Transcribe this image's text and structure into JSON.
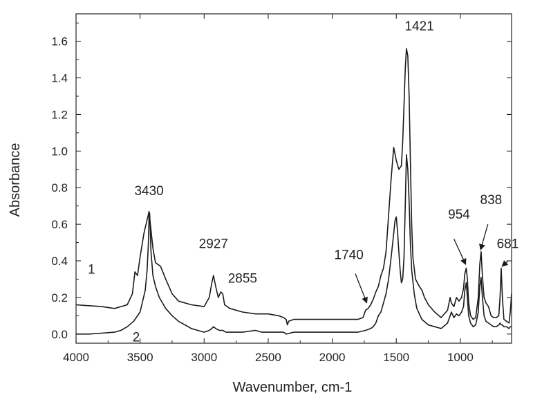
{
  "chart_data": {
    "type": "line",
    "xlabel": "Wavenumber, cm-1",
    "ylabel": "Absorbance",
    "xlim": [
      4000,
      600
    ],
    "ylim": [
      -0.05,
      1.75
    ],
    "x_reversed": true,
    "grid": false,
    "legend": "none",
    "x_ticks": [
      4000,
      3500,
      3000,
      2500,
      2000,
      1500,
      1000
    ],
    "y_ticks": [
      0.0,
      0.2,
      0.4,
      0.6,
      0.8,
      1.0,
      1.2,
      1.4,
      1.6
    ],
    "x_tick_labels": [
      "4000",
      "3500",
      "3000",
      "2500",
      "2000",
      "1500",
      "1000"
    ],
    "y_tick_labels": [
      "0.0",
      "0.2",
      "0.4",
      "0.6",
      "0.8",
      "1.0",
      "1.2",
      "1.4",
      "1.6"
    ],
    "line_color": "#1a1a1a",
    "series": [
      {
        "label": "1",
        "x": [
          4000,
          3800,
          3700,
          3600,
          3560,
          3540,
          3520,
          3500,
          3470,
          3450,
          3440,
          3430,
          3420,
          3400,
          3380,
          3360,
          3340,
          3300,
          3250,
          3200,
          3100,
          3000,
          2960,
          2940,
          2927,
          2910,
          2890,
          2870,
          2855,
          2840,
          2800,
          2700,
          2600,
          2500,
          2420,
          2380,
          2360,
          2350,
          2340,
          2300,
          2200,
          2100,
          2000,
          1900,
          1800,
          1760,
          1740,
          1720,
          1700,
          1680,
          1660,
          1640,
          1620,
          1600,
          1580,
          1560,
          1540,
          1520,
          1500,
          1480,
          1460,
          1450,
          1440,
          1430,
          1421,
          1410,
          1400,
          1390,
          1380,
          1370,
          1350,
          1320,
          1300,
          1280,
          1250,
          1200,
          1150,
          1100,
          1080,
          1070,
          1050,
          1030,
          1010,
          990,
          975,
          965,
          954,
          945,
          935,
          920,
          900,
          880,
          860,
          848,
          838,
          828,
          815,
          800,
          780,
          760,
          740,
          720,
          700,
          690,
          681,
          672,
          660,
          640,
          620,
          610,
          600
        ],
        "y": [
          0.16,
          0.15,
          0.14,
          0.16,
          0.22,
          0.34,
          0.32,
          0.42,
          0.55,
          0.61,
          0.64,
          0.67,
          0.6,
          0.47,
          0.39,
          0.38,
          0.37,
          0.3,
          0.22,
          0.18,
          0.16,
          0.15,
          0.2,
          0.28,
          0.32,
          0.26,
          0.2,
          0.23,
          0.22,
          0.16,
          0.14,
          0.12,
          0.11,
          0.11,
          0.1,
          0.09,
          0.08,
          0.05,
          0.07,
          0.08,
          0.08,
          0.08,
          0.08,
          0.08,
          0.08,
          0.09,
          0.13,
          0.14,
          0.16,
          0.19,
          0.23,
          0.26,
          0.32,
          0.36,
          0.45,
          0.65,
          0.85,
          1.02,
          0.95,
          0.9,
          0.92,
          1.05,
          1.25,
          1.45,
          1.56,
          1.52,
          1.3,
          0.95,
          0.6,
          0.42,
          0.3,
          0.26,
          0.24,
          0.2,
          0.16,
          0.12,
          0.09,
          0.13,
          0.2,
          0.17,
          0.15,
          0.2,
          0.18,
          0.2,
          0.25,
          0.33,
          0.36,
          0.3,
          0.17,
          0.1,
          0.08,
          0.09,
          0.2,
          0.38,
          0.45,
          0.32,
          0.2,
          0.17,
          0.15,
          0.1,
          0.09,
          0.09,
          0.1,
          0.2,
          0.36,
          0.2,
          0.08,
          0.07,
          0.06,
          0.12,
          0.22
        ]
      },
      {
        "label": "2",
        "x": [
          4000,
          3900,
          3800,
          3700,
          3650,
          3600,
          3550,
          3500,
          3480,
          3460,
          3445,
          3435,
          3430,
          3425,
          3415,
          3400,
          3380,
          3350,
          3300,
          3250,
          3200,
          3150,
          3100,
          3050,
          3000,
          2960,
          2940,
          2927,
          2910,
          2880,
          2855,
          2830,
          2800,
          2700,
          2600,
          2550,
          2500,
          2420,
          2380,
          2360,
          2300,
          2200,
          2100,
          2000,
          1900,
          1800,
          1740,
          1700,
          1680,
          1660,
          1640,
          1620,
          1600,
          1580,
          1560,
          1540,
          1520,
          1510,
          1500,
          1490,
          1480,
          1470,
          1460,
          1450,
          1440,
          1430,
          1421,
          1410,
          1400,
          1390,
          1380,
          1360,
          1340,
          1300,
          1250,
          1200,
          1150,
          1100,
          1080,
          1070,
          1050,
          1030,
          1010,
          990,
          975,
          965,
          954,
          945,
          935,
          920,
          900,
          880,
          860,
          848,
          838,
          828,
          815,
          800,
          780,
          760,
          740,
          720,
          700,
          690,
          681,
          672,
          660,
          640,
          620,
          610,
          600
        ],
        "y": [
          0.0,
          0.0,
          0.005,
          0.01,
          0.02,
          0.04,
          0.07,
          0.12,
          0.18,
          0.24,
          0.35,
          0.5,
          0.64,
          0.66,
          0.45,
          0.32,
          0.26,
          0.2,
          0.14,
          0.1,
          0.07,
          0.05,
          0.03,
          0.02,
          0.01,
          0.02,
          0.03,
          0.04,
          0.03,
          0.02,
          0.02,
          0.01,
          0.01,
          0.01,
          0.02,
          0.01,
          0.01,
          0.01,
          0.01,
          0.0,
          0.01,
          0.01,
          0.01,
          0.01,
          0.01,
          0.01,
          0.02,
          0.03,
          0.04,
          0.06,
          0.1,
          0.12,
          0.17,
          0.22,
          0.3,
          0.42,
          0.55,
          0.62,
          0.64,
          0.56,
          0.45,
          0.35,
          0.28,
          0.3,
          0.42,
          0.7,
          0.98,
          0.9,
          0.72,
          0.5,
          0.35,
          0.22,
          0.14,
          0.08,
          0.05,
          0.04,
          0.03,
          0.06,
          0.1,
          0.12,
          0.09,
          0.11,
          0.1,
          0.12,
          0.15,
          0.24,
          0.28,
          0.2,
          0.1,
          0.06,
          0.04,
          0.05,
          0.12,
          0.26,
          0.31,
          0.2,
          0.1,
          0.07,
          0.06,
          0.05,
          0.04,
          0.04,
          0.05,
          0.06,
          0.05,
          0.05,
          0.04,
          0.04,
          0.03,
          0.04,
          0.04
        ]
      }
    ],
    "annotations": [
      {
        "text": "3430",
        "x": 3430,
        "y": 0.76
      },
      {
        "text": "2927",
        "x": 2927,
        "y": 0.47
      },
      {
        "text": "2855",
        "x": 2700,
        "y": 0.28
      },
      {
        "text": "1740",
        "x": 1870,
        "y": 0.41
      },
      {
        "text": "1421",
        "x": 1320,
        "y": 1.66
      },
      {
        "text": "954",
        "x": 1010,
        "y": 0.63
      },
      {
        "text": "838",
        "x": 760,
        "y": 0.71
      },
      {
        "text": "681",
        "x": 630,
        "y": 0.47
      }
    ],
    "arrows": [
      {
        "from": [
          1820,
          0.33
        ],
        "to": [
          1730,
          0.17
        ]
      },
      {
        "from": [
          1050,
          0.52
        ],
        "to": [
          958,
          0.38
        ]
      },
      {
        "from": [
          785,
          0.6
        ],
        "to": [
          842,
          0.46
        ]
      },
      {
        "from": [
          628,
          0.4
        ],
        "to": [
          675,
          0.37
        ]
      }
    ],
    "curve_labels": [
      {
        "text": "1",
        "x": 3880,
        "y": 0.33
      },
      {
        "text": "2",
        "x": 3530,
        "y": -0.04
      }
    ]
  }
}
